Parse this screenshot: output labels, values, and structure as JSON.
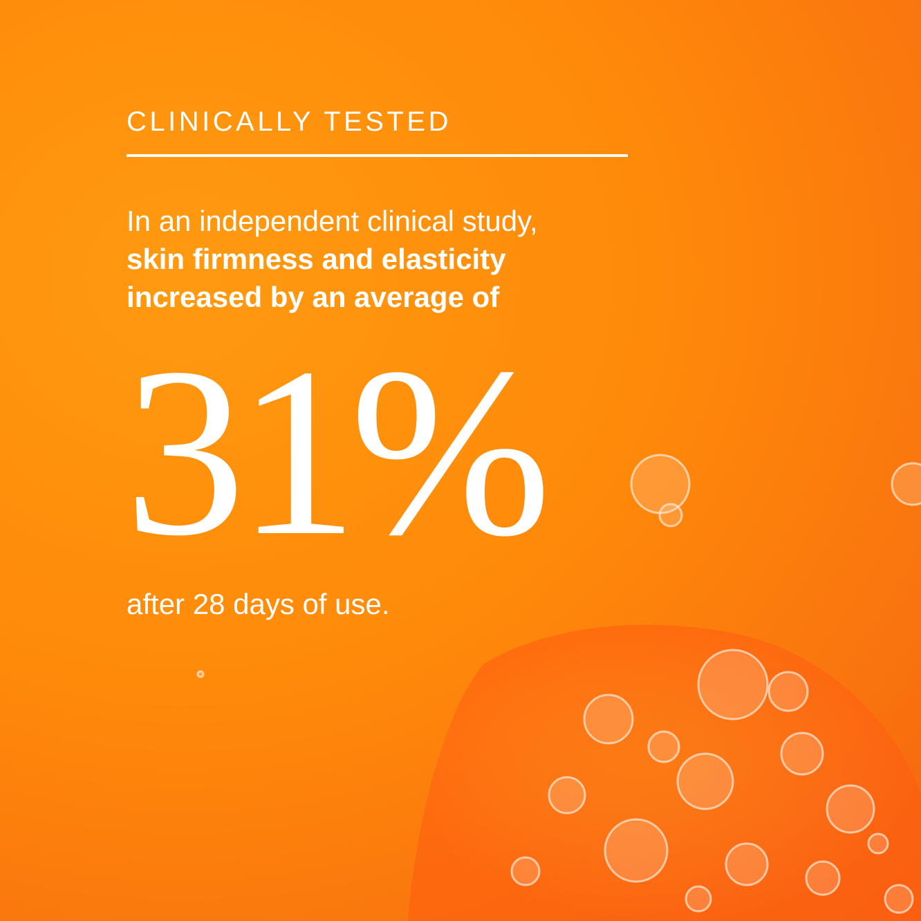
{
  "header": {
    "title": "CLINICALLY TESTED"
  },
  "body": {
    "intro": "In an independent clinical study,",
    "highlight": [
      "skin firmness and elasticity",
      "increased by an average of"
    ]
  },
  "stat": {
    "value": "31%"
  },
  "footer": {
    "text": "after 28 days of use."
  }
}
